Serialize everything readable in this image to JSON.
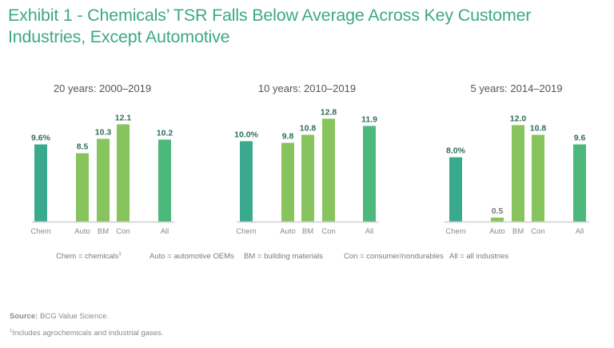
{
  "title": "Exhibit 1 - Chemicals’ TSR Falls Below Average Across Key Customer Industries, Except Automotive",
  "colors": {
    "title": "#3ea888",
    "chem": "#3aaa8e",
    "industry": "#88c45e",
    "all": "#4cb87c",
    "label": "#2f6e58",
    "label_small": "#777777",
    "axis": "#d0d0d0",
    "tick": "#8a8a8a"
  },
  "chart_data": [
    {
      "type": "bar",
      "title": "20 years: 2000–2019",
      "categories": [
        "Chem",
        "Auto",
        "BM",
        "Con",
        "All"
      ],
      "values": [
        9.6,
        8.5,
        10.3,
        12.1,
        10.2
      ],
      "labels": [
        "9.6%",
        "8.5",
        "10.3",
        "12.1",
        "10.2"
      ],
      "xlabel": "",
      "ylabel": "",
      "ylim": [
        0,
        13
      ],
      "grid": false
    },
    {
      "type": "bar",
      "title": "10 years: 2010–2019",
      "categories": [
        "Chem",
        "Auto",
        "BM",
        "Con",
        "All"
      ],
      "values": [
        10.0,
        9.8,
        10.8,
        12.8,
        11.9
      ],
      "labels": [
        "10.0%",
        "9.8",
        "10.8",
        "12.8",
        "11.9"
      ],
      "xlabel": "",
      "ylabel": "",
      "ylim": [
        0,
        13
      ],
      "grid": false
    },
    {
      "type": "bar",
      "title": "5 years: 2014–2019",
      "categories": [
        "Chem",
        "Auto",
        "BM",
        "Con",
        "All"
      ],
      "values": [
        8.0,
        0.5,
        12.0,
        10.8,
        9.6
      ],
      "labels": [
        "8.0%",
        "0.5",
        "12.0",
        "10.8",
        "9.6"
      ],
      "xlabel": "",
      "ylabel": "",
      "ylim": [
        0,
        13
      ],
      "grid": false
    }
  ],
  "legend": [
    {
      "text": "Chem = chemicals",
      "sup": "1"
    },
    {
      "text": "Auto = automotive OEMs",
      "sup": ""
    },
    {
      "text": "BM = building materials",
      "sup": ""
    },
    {
      "text": "Con = consumer/nondurables",
      "sup": ""
    },
    {
      "text": "All = all industries",
      "sup": ""
    }
  ],
  "source": {
    "label": "Source:",
    "text": " BCG Value Science."
  },
  "footnote": {
    "marker": "1",
    "text": "Includes agrochemicals and industrial gases."
  }
}
